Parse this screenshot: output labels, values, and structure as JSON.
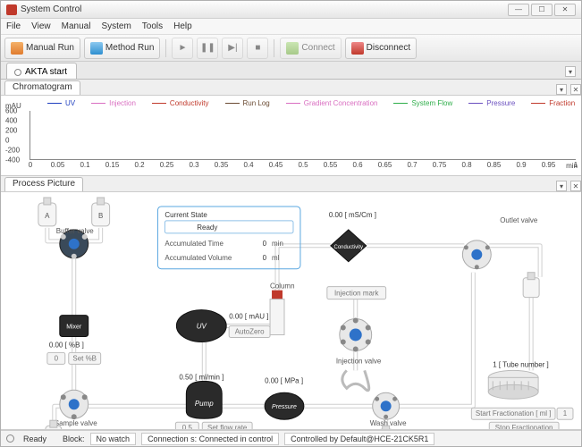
{
  "window": {
    "title": "System Control"
  },
  "menu": {
    "items": [
      "File",
      "View",
      "Manual",
      "System",
      "Tools",
      "Help"
    ]
  },
  "toolbar": {
    "manual_run": "Manual Run",
    "method_run": "Method Run",
    "connect": "Connect",
    "disconnect": "Disconnect",
    "icon_colors": {
      "manual_run": "#e07b2e",
      "method_run": "#2e8fd0",
      "connect": "#6fae3a",
      "disconnect": "#c0392b"
    }
  },
  "top_tab": {
    "label": "AKTA start"
  },
  "chromo": {
    "panel_title": "Chromatogram",
    "y_unit": "mAU",
    "x_unit": "min",
    "y_ticks": [
      600,
      400,
      200,
      0,
      -200,
      -400
    ],
    "ylim": [
      -400,
      600
    ],
    "x_ticks": [
      0,
      0.05,
      0.1,
      0.15,
      0.2,
      0.25,
      0.3,
      0.35,
      0.4,
      0.45,
      0.5,
      0.55,
      0.6,
      0.65,
      0.7,
      0.75,
      0.8,
      0.85,
      0.9,
      0.95,
      1
    ],
    "xlim": [
      0,
      1
    ],
    "legend": [
      {
        "label": "UV",
        "color": "#1f3fbf"
      },
      {
        "label": "Injection",
        "color": "#d96fc1"
      },
      {
        "label": "Conductivity",
        "color": "#c0392b"
      },
      {
        "label": "Run Log",
        "color": "#6b4b33"
      },
      {
        "label": "Gradient Concentration",
        "color": "#d96fc1"
      },
      {
        "label": "System Flow",
        "color": "#2fae4a"
      },
      {
        "label": "Pressure",
        "color": "#6a4fbf"
      },
      {
        "label": "Fraction",
        "color": "#c0392b"
      }
    ],
    "axis_color": "#888888",
    "tick_font_size": 8
  },
  "process": {
    "panel_title": "Process Picture",
    "background": "#ffffff",
    "pipe_color": "#cfcfcf",
    "state_box": {
      "title": "Current State",
      "state": "Ready",
      "accum_time_label": "Accumulated Time",
      "accum_time_value": "0",
      "accum_time_unit": "min",
      "accum_vol_label": "Accumulated Volume",
      "accum_vol_value": "0",
      "accum_vol_unit": "ml"
    },
    "buffer_valve": {
      "label": "Buffer valve",
      "bottle_a": "A",
      "bottle_b": "B"
    },
    "mixer": {
      "label": "Mixer",
      "value": "0.00",
      "unit": "[ %B ]",
      "btn_zero": "0",
      "btn_set": "Set %B"
    },
    "sample_valve": {
      "label": "Sample valve"
    },
    "uv": {
      "label": "UV",
      "value": "0.00",
      "unit": "[ mAU ]",
      "btn": "AutoZero"
    },
    "pump": {
      "label": "Pump",
      "value": "0.50",
      "unit": "[ ml/min ]",
      "btn_val": "0.5",
      "btn_set": "Set flow rate"
    },
    "column": {
      "label": "Column"
    },
    "pressure": {
      "label": "Pressure",
      "value": "0.00",
      "unit": "[ MPa ]"
    },
    "conductivity": {
      "label": "Conductivity",
      "value": "0.00",
      "unit": "[ mS/Cm ]"
    },
    "injection_valve": {
      "label": "Injection valve",
      "btn": "Injection mark"
    },
    "wash_valve": {
      "label": "Wash valve"
    },
    "outlet_valve": {
      "label": "Outlet valve"
    },
    "frac": {
      "tube_no": "1",
      "tube_label": "[ Tube number ]",
      "start_btn": "Start Fractionation [ ml ]",
      "start_val": "1",
      "stop_btn": "Stop Fractionation"
    }
  },
  "statusbar": {
    "ready": "Ready",
    "block_label": "Block:",
    "watch": "No watch",
    "connection": "Connection s: Connected in control",
    "controlled": "Controlled by Default@HCE-21CK5R1"
  }
}
